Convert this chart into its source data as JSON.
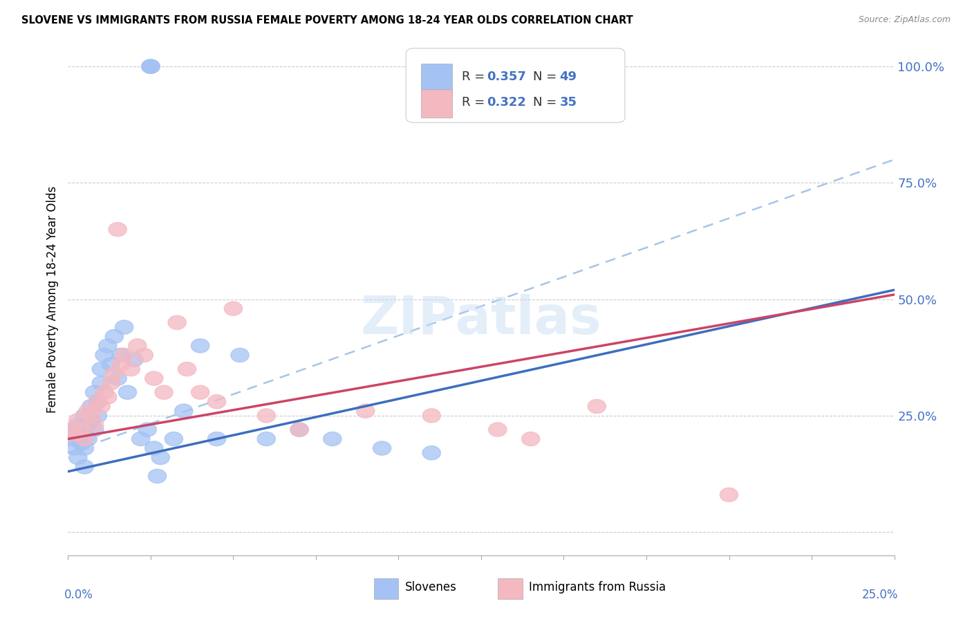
{
  "title": "SLOVENE VS IMMIGRANTS FROM RUSSIA FEMALE POVERTY AMONG 18-24 YEAR OLDS CORRELATION CHART",
  "source": "Source: ZipAtlas.com",
  "ylabel": "Female Poverty Among 18-24 Year Olds",
  "color_slovene": "#a4c2f4",
  "color_russia": "#f4b8c1",
  "color_line_slovene": "#3c6ebf",
  "color_line_russia": "#cc4466",
  "color_line_diagonal": "#a8c4e8",
  "xlim": [
    0.0,
    0.25
  ],
  "ylim": [
    -0.05,
    1.05
  ],
  "ytick_vals": [
    0.0,
    0.25,
    0.5,
    0.75,
    1.0
  ],
  "ytick_labels": [
    "",
    "25.0%",
    "50.0%",
    "75.0%",
    "100.0%"
  ],
  "blue_line_x0": 0.0,
  "blue_line_y0": 0.13,
  "blue_line_x1": 0.25,
  "blue_line_y1": 0.52,
  "pink_line_x0": 0.0,
  "pink_line_y0": 0.2,
  "pink_line_x1": 0.25,
  "pink_line_y1": 0.51,
  "diag_line_x0": 0.0,
  "diag_line_y0": 0.17,
  "diag_line_x1": 0.25,
  "diag_line_y1": 0.8,
  "slovene_x": [
    0.001,
    0.001,
    0.002,
    0.002,
    0.003,
    0.003,
    0.004,
    0.004,
    0.005,
    0.005,
    0.005,
    0.006,
    0.006,
    0.007,
    0.007,
    0.008,
    0.008,
    0.009,
    0.009,
    0.01,
    0.01,
    0.011,
    0.012,
    0.013,
    0.014,
    0.015,
    0.016,
    0.017,
    0.018,
    0.02,
    0.022,
    0.024,
    0.026,
    0.028,
    0.032,
    0.035,
    0.04,
    0.045,
    0.052,
    0.06,
    0.07,
    0.08,
    0.095,
    0.11,
    0.025,
    0.025,
    0.025,
    0.027,
    0.005
  ],
  "slovene_y": [
    0.22,
    0.2,
    0.18,
    0.21,
    0.16,
    0.23,
    0.22,
    0.19,
    0.21,
    0.25,
    0.18,
    0.23,
    0.2,
    0.27,
    0.24,
    0.3,
    0.22,
    0.28,
    0.25,
    0.35,
    0.32,
    0.38,
    0.4,
    0.36,
    0.42,
    0.33,
    0.38,
    0.44,
    0.3,
    0.37,
    0.2,
    0.22,
    0.18,
    0.16,
    0.2,
    0.26,
    0.4,
    0.2,
    0.38,
    0.2,
    0.22,
    0.2,
    0.18,
    0.17,
    1.0,
    1.0,
    1.0,
    0.12,
    0.14
  ],
  "russia_x": [
    0.001,
    0.002,
    0.003,
    0.004,
    0.005,
    0.006,
    0.007,
    0.008,
    0.009,
    0.01,
    0.011,
    0.012,
    0.013,
    0.014,
    0.015,
    0.016,
    0.017,
    0.019,
    0.021,
    0.023,
    0.026,
    0.029,
    0.033,
    0.036,
    0.04,
    0.045,
    0.05,
    0.06,
    0.07,
    0.09,
    0.11,
    0.13,
    0.14,
    0.16,
    0.2
  ],
  "russia_y": [
    0.22,
    0.21,
    0.24,
    0.22,
    0.2,
    0.26,
    0.25,
    0.23,
    0.28,
    0.27,
    0.3,
    0.29,
    0.32,
    0.34,
    0.65,
    0.36,
    0.38,
    0.35,
    0.4,
    0.38,
    0.33,
    0.3,
    0.45,
    0.35,
    0.3,
    0.28,
    0.48,
    0.25,
    0.22,
    0.26,
    0.25,
    0.22,
    0.2,
    0.27,
    0.08
  ]
}
